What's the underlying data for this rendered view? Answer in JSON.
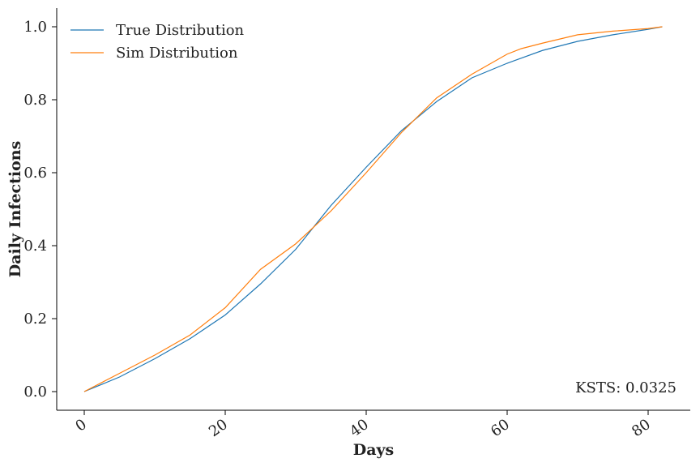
{
  "chart_data": {
    "type": "line",
    "title": "",
    "xlabel": "Days",
    "ylabel": "Daily Infections",
    "xlim": [
      -4,
      86
    ],
    "ylim": [
      -0.05,
      1.05
    ],
    "xticks": [
      0,
      20,
      40,
      60,
      80
    ],
    "yticks": [
      0.0,
      0.2,
      0.4,
      0.6,
      0.8,
      1.0
    ],
    "xtick_labels": [
      "0",
      "20",
      "40",
      "60",
      "80"
    ],
    "ytick_labels": [
      "0.0",
      "0.2",
      "0.4",
      "0.6",
      "0.8",
      "1.0"
    ],
    "grid": false,
    "legend_position": "top-left",
    "annotation": "KSTS: 0.0325",
    "series": [
      {
        "name": "True Distribution",
        "color": "#1f77b4",
        "x": [
          0,
          5,
          10,
          15,
          20,
          25,
          30,
          35,
          40,
          45,
          50,
          55,
          60,
          65,
          70,
          75,
          80,
          82
        ],
        "y": [
          0.0,
          0.04,
          0.09,
          0.145,
          0.21,
          0.295,
          0.39,
          0.51,
          0.615,
          0.715,
          0.795,
          0.86,
          0.9,
          0.935,
          0.96,
          0.978,
          0.993,
          1.0
        ]
      },
      {
        "name": "Sim Distribution",
        "color": "#ff7f0e",
        "x": [
          0,
          5,
          10,
          15,
          20,
          25,
          30,
          35,
          40,
          45,
          50,
          55,
          60,
          62,
          65,
          70,
          75,
          80,
          82
        ],
        "y": [
          0.0,
          0.05,
          0.1,
          0.155,
          0.23,
          0.335,
          0.405,
          0.495,
          0.6,
          0.71,
          0.805,
          0.87,
          0.925,
          0.94,
          0.955,
          0.978,
          0.988,
          0.995,
          1.0
        ]
      }
    ]
  }
}
